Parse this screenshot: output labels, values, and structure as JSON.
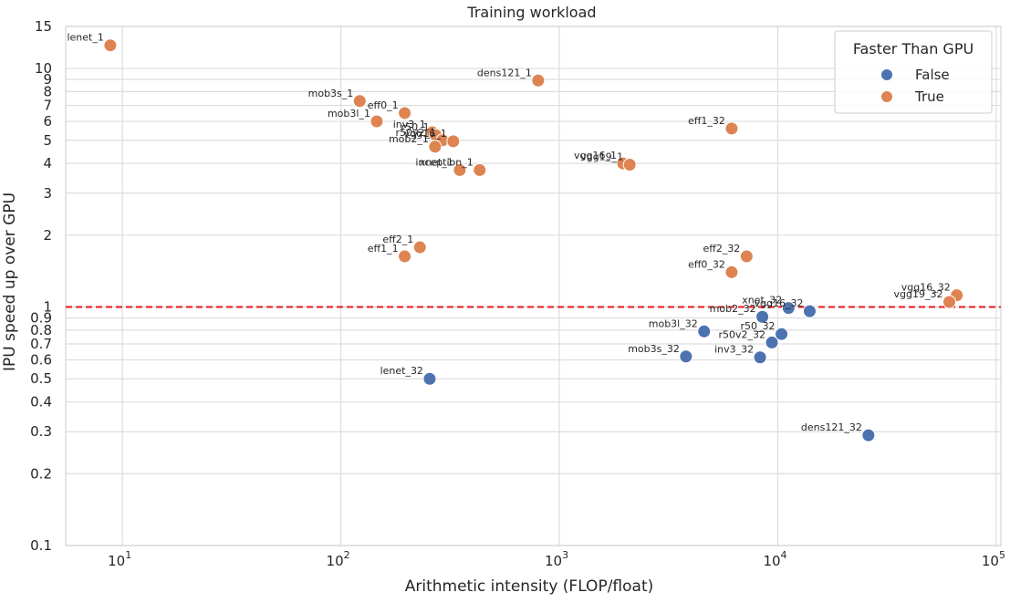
{
  "chart_data": {
    "type": "scatter",
    "title": "Training workload",
    "xlabel": "Arithmetic intensity (FLOP/float)",
    "ylabel": "IPU speed up over GPU",
    "xscale": "log",
    "yscale": "log",
    "xlim": [
      5.5,
      105000
    ],
    "ylim": [
      0.1,
      15
    ],
    "x_ticks": [
      {
        "value": 10,
        "base": "10",
        "exp": "1"
      },
      {
        "value": 100,
        "base": "10",
        "exp": "2"
      },
      {
        "value": 1000,
        "base": "10",
        "exp": "3"
      },
      {
        "value": 10000,
        "base": "10",
        "exp": "4"
      },
      {
        "value": 100000,
        "base": "10",
        "exp": "5"
      }
    ],
    "y_ticks": [
      {
        "value": 0.1,
        "label": "0.1"
      },
      {
        "value": 0.2,
        "label": "0.2"
      },
      {
        "value": 0.3,
        "label": "0.3"
      },
      {
        "value": 0.4,
        "label": "0.4"
      },
      {
        "value": 0.5,
        "label": "0.5"
      },
      {
        "value": 0.6,
        "label": "0.6"
      },
      {
        "value": 0.7,
        "label": "0.7"
      },
      {
        "value": 0.8,
        "label": "0.8"
      },
      {
        "value": 0.9,
        "label": "0.9"
      },
      {
        "value": 1,
        "label": "1"
      },
      {
        "value": 2,
        "label": "2"
      },
      {
        "value": 3,
        "label": "3"
      },
      {
        "value": 4,
        "label": "4"
      },
      {
        "value": 5,
        "label": "5"
      },
      {
        "value": 6,
        "label": "6"
      },
      {
        "value": 7,
        "label": "7"
      },
      {
        "value": 8,
        "label": "8"
      },
      {
        "value": 9,
        "label": "9"
      },
      {
        "value": 10,
        "label": "10"
      },
      {
        "value": 15,
        "label": "15"
      }
    ],
    "reference_line": {
      "y": 1,
      "style": "dashed",
      "color": "#e41a1c"
    },
    "grid": true,
    "legend": {
      "title": "Faster Than GPU",
      "placement": "top-right",
      "entries": [
        {
          "label": "False",
          "color": "#4c72b0"
        },
        {
          "label": "True",
          "color": "#dd8452"
        }
      ]
    },
    "series": [
      {
        "key": "False",
        "color": "#4c72b0",
        "points": [
          {
            "label": "lenet_32",
            "x": 255,
            "y": 0.5
          },
          {
            "label": "mob3l_32",
            "x": 4600,
            "y": 0.79
          },
          {
            "label": "mob3s_32",
            "x": 3800,
            "y": 0.62
          },
          {
            "label": "inv3_32",
            "x": 8300,
            "y": 0.615
          },
          {
            "label": "r50v2_32",
            "x": 9400,
            "y": 0.71
          },
          {
            "label": "r50_32",
            "x": 10400,
            "y": 0.77
          },
          {
            "label": "mob2_32",
            "x": 8500,
            "y": 0.91
          },
          {
            "label": "xnet_32",
            "x": 11200,
            "y": 0.99
          },
          {
            "label": "vgg16_32",
            "x": 14000,
            "y": 0.96
          },
          {
            "label": "dens121_32",
            "x": 26000,
            "y": 0.29
          }
        ]
      },
      {
        "key": "True",
        "color": "#dd8452",
        "points": [
          {
            "label": "lenet_1",
            "x": 8.8,
            "y": 12.5
          },
          {
            "label": "dens121_1",
            "x": 800,
            "y": 8.9
          },
          {
            "label": "mob3s_1",
            "x": 122,
            "y": 7.3
          },
          {
            "label": "eff0_1",
            "x": 196,
            "y": 6.5
          },
          {
            "label": "mob3l_1",
            "x": 146,
            "y": 6.0
          },
          {
            "label": "inv3_1",
            "x": 262,
            "y": 5.4
          },
          {
            "label": "r50_1",
            "x": 272,
            "y": 5.25
          },
          {
            "label": "r50v2_1",
            "x": 292,
            "y": 5.0
          },
          {
            "label": "vgg16_1",
            "x": 327,
            "y": 4.95
          },
          {
            "label": "mob2_1",
            "x": 270,
            "y": 4.7
          },
          {
            "label": "xnet_1",
            "x": 350,
            "y": 3.75
          },
          {
            "label": "inception_1",
            "x": 432,
            "y": 3.75
          },
          {
            "label": "eff1_32",
            "x": 6150,
            "y": 5.6
          },
          {
            "label": "vgg16_1",
            "x": 1960,
            "y": 4.0
          },
          {
            "label": "vgg19_1",
            "x": 2100,
            "y": 3.95
          },
          {
            "label": "eff2_1",
            "x": 230,
            "y": 1.78
          },
          {
            "label": "eff1_1",
            "x": 196,
            "y": 1.63
          },
          {
            "label": "eff2_32",
            "x": 7200,
            "y": 1.63
          },
          {
            "label": "eff0_32",
            "x": 6150,
            "y": 1.4
          },
          {
            "label": "vgg16_32",
            "x": 66000,
            "y": 1.12
          },
          {
            "label": "vgg19_32",
            "x": 61000,
            "y": 1.05
          }
        ]
      }
    ]
  }
}
